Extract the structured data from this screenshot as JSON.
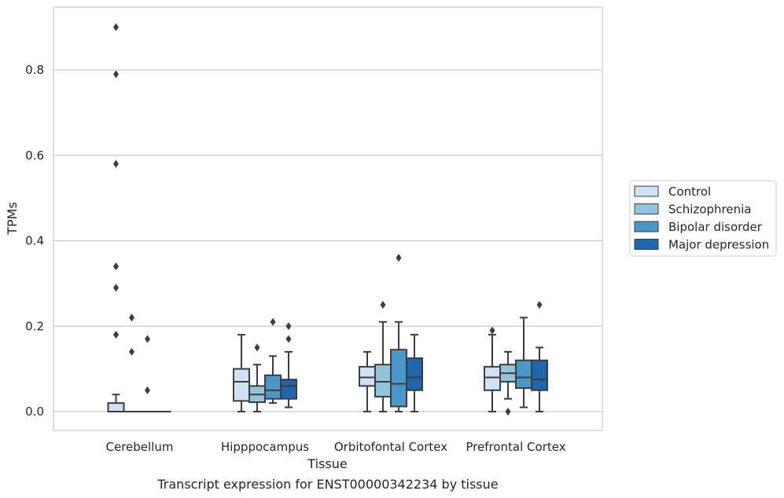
{
  "chart_data": {
    "type": "box",
    "title": "Transcript expression for ENST00000342234 by tissue",
    "xlabel": "Tissue",
    "ylabel": "TPMs",
    "ylim": [
      -0.045,
      0.95
    ],
    "yticks": [
      0.0,
      0.2,
      0.4,
      0.6,
      0.8
    ],
    "ytick_labels": [
      "0.0",
      "0.2",
      "0.4",
      "0.6",
      "0.8"
    ],
    "grid": true,
    "legend_position": "right",
    "categories": [
      "Cerebellum",
      "Hipppocampus",
      "Orbitofontal Cortex",
      "Prefrontal Cortex"
    ],
    "series": [
      {
        "name": "Control",
        "color": "#cfe1f2",
        "boxes": [
          {
            "q1": 0.0,
            "median": 0.0,
            "q3": 0.02,
            "whisker_low": 0.0,
            "whisker_high": 0.04,
            "outliers": [
              0.18,
              0.29,
              0.34,
              0.58,
              0.79,
              0.9
            ]
          },
          {
            "q1": 0.025,
            "median": 0.07,
            "q3": 0.1,
            "whisker_low": 0.0,
            "whisker_high": 0.18,
            "outliers": []
          },
          {
            "q1": 0.06,
            "median": 0.08,
            "q3": 0.105,
            "whisker_low": 0.0,
            "whisker_high": 0.14,
            "outliers": []
          },
          {
            "q1": 0.05,
            "median": 0.08,
            "q3": 0.105,
            "whisker_low": 0.0,
            "whisker_high": 0.18,
            "outliers": [
              0.19
            ]
          }
        ]
      },
      {
        "name": "Schizophrenia",
        "color": "#93c4de",
        "boxes": [
          {
            "q1": 0.0,
            "median": 0.0,
            "q3": 0.0,
            "whisker_low": 0.0,
            "whisker_high": 0.0,
            "outliers": [
              0.14,
              0.22
            ]
          },
          {
            "q1": 0.022,
            "median": 0.04,
            "q3": 0.06,
            "whisker_low": 0.0,
            "whisker_high": 0.11,
            "outliers": [
              0.15
            ]
          },
          {
            "q1": 0.035,
            "median": 0.07,
            "q3": 0.11,
            "whisker_low": 0.0,
            "whisker_high": 0.21,
            "outliers": [
              0.25
            ]
          },
          {
            "q1": 0.07,
            "median": 0.09,
            "q3": 0.11,
            "whisker_low": 0.03,
            "whisker_high": 0.14,
            "outliers": [
              0.0
            ]
          }
        ]
      },
      {
        "name": "Bipolar disorder",
        "color": "#4a98c9",
        "boxes": [
          {
            "q1": 0.0,
            "median": 0.0,
            "q3": 0.0,
            "whisker_low": 0.0,
            "whisker_high": 0.0,
            "outliers": [
              0.05,
              0.17
            ]
          },
          {
            "q1": 0.03,
            "median": 0.05,
            "q3": 0.085,
            "whisker_low": 0.02,
            "whisker_high": 0.13,
            "outliers": [
              0.21
            ]
          },
          {
            "q1": 0.012,
            "median": 0.065,
            "q3": 0.145,
            "whisker_low": 0.0,
            "whisker_high": 0.21,
            "outliers": [
              0.36
            ]
          },
          {
            "q1": 0.055,
            "median": 0.08,
            "q3": 0.12,
            "whisker_low": 0.01,
            "whisker_high": 0.22,
            "outliers": []
          }
        ]
      },
      {
        "name": "Major depression",
        "color": "#2166ac",
        "boxes": [
          {
            "q1": 0.0,
            "median": 0.0,
            "q3": 0.0,
            "whisker_low": 0.0,
            "whisker_high": 0.0,
            "outliers": []
          },
          {
            "q1": 0.03,
            "median": 0.06,
            "q3": 0.075,
            "whisker_low": 0.01,
            "whisker_high": 0.14,
            "outliers": [
              0.17,
              0.2
            ]
          },
          {
            "q1": 0.05,
            "median": 0.08,
            "q3": 0.125,
            "whisker_low": 0.0,
            "whisker_high": 0.18,
            "outliers": []
          },
          {
            "q1": 0.05,
            "median": 0.075,
            "q3": 0.12,
            "whisker_low": 0.0,
            "whisker_high": 0.15,
            "outliers": [
              0.25
            ]
          }
        ]
      }
    ]
  }
}
